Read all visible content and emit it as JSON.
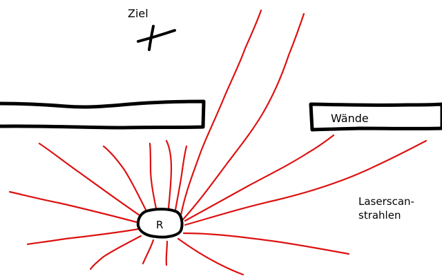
{
  "labels": {
    "target": "Ziel",
    "walls": "Wände",
    "robot": "R",
    "laser_line1": "Laserscan-",
    "laser_line2": "strahlen"
  },
  "colors": {
    "ink": "#000000",
    "ray": "#dd1111",
    "background": "#ffffff"
  },
  "icons": {
    "target": "cross-icon",
    "robot": "robot-outline"
  }
}
